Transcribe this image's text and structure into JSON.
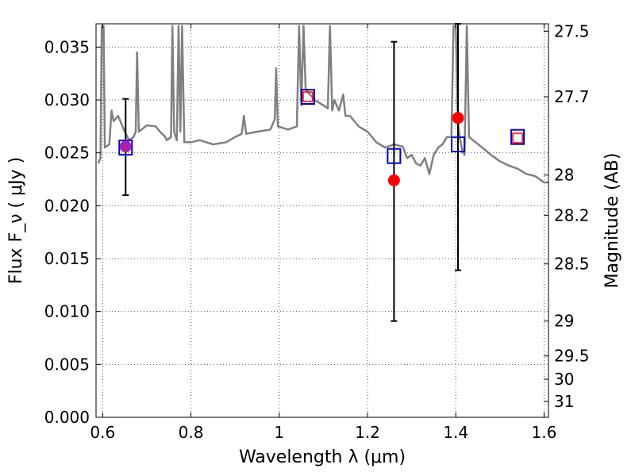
{
  "chart_data": {
    "type": "scatter",
    "xlabel": "Wavelength  λ (μm)",
    "ylabel": "Flux  F_ν  ( μJy )",
    "y2label": "Magnitude (AB)",
    "xlim": [
      0.585,
      1.61
    ],
    "ylim": [
      0.0,
      0.0372
    ],
    "grid": true,
    "x_ticks": [
      {
        "value": 0.6,
        "label": "0.6"
      },
      {
        "value": 0.8,
        "label": "0.8"
      },
      {
        "value": 1.0,
        "label": "1"
      },
      {
        "value": 1.2,
        "label": "1.2"
      },
      {
        "value": 1.4,
        "label": "1.4"
      },
      {
        "value": 1.6,
        "label": "1.6"
      }
    ],
    "y_ticks": [
      {
        "value": 0.0,
        "label": "0.000"
      },
      {
        "value": 0.005,
        "label": "0.005"
      },
      {
        "value": 0.01,
        "label": "0.010"
      },
      {
        "value": 0.015,
        "label": "0.015"
      },
      {
        "value": 0.02,
        "label": "0.020"
      },
      {
        "value": 0.025,
        "label": "0.025"
      },
      {
        "value": 0.03,
        "label": "0.030"
      },
      {
        "value": 0.035,
        "label": "0.035"
      }
    ],
    "y2_ticks": [
      {
        "flux": 0.0365,
        "label": "27.5"
      },
      {
        "flux": 0.0303,
        "label": "27.7"
      },
      {
        "flux": 0.0229,
        "label": "28"
      },
      {
        "flux": 0.0191,
        "label": "28.2"
      },
      {
        "flux": 0.0145,
        "label": "28.5"
      },
      {
        "flux": 0.0091,
        "label": "29"
      },
      {
        "flux": 0.0058,
        "label": "29.5"
      },
      {
        "flux": 0.0036,
        "label": "30"
      },
      {
        "flux": 0.0015,
        "label": "31"
      }
    ],
    "spectrum": {
      "color": "#808080",
      "points": [
        [
          0.59,
          0.024
        ],
        [
          0.595,
          0.0245
        ],
        [
          0.598,
          0.037
        ],
        [
          0.602,
          0.037
        ],
        [
          0.605,
          0.0255
        ],
        [
          0.615,
          0.0258
        ],
        [
          0.62,
          0.029
        ],
        [
          0.625,
          0.028
        ],
        [
          0.635,
          0.0285
        ],
        [
          0.64,
          0.028
        ],
        [
          0.65,
          0.027
        ],
        [
          0.66,
          0.0262
        ],
        [
          0.67,
          0.0265
        ],
        [
          0.675,
          0.027
        ],
        [
          0.678,
          0.0345
        ],
        [
          0.682,
          0.027
        ],
        [
          0.7,
          0.0276
        ],
        [
          0.72,
          0.0275
        ],
        [
          0.73,
          0.027
        ],
        [
          0.74,
          0.0266
        ],
        [
          0.745,
          0.0262
        ],
        [
          0.755,
          0.0265
        ],
        [
          0.758,
          0.037
        ],
        [
          0.762,
          0.027
        ],
        [
          0.768,
          0.0262
        ],
        [
          0.772,
          0.037
        ],
        [
          0.776,
          0.027
        ],
        [
          0.78,
          0.037
        ],
        [
          0.785,
          0.026
        ],
        [
          0.8,
          0.026
        ],
        [
          0.82,
          0.0262
        ],
        [
          0.85,
          0.0258
        ],
        [
          0.88,
          0.026
        ],
        [
          0.9,
          0.0265
        ],
        [
          0.915,
          0.0268
        ],
        [
          0.92,
          0.0285
        ],
        [
          0.925,
          0.0268
        ],
        [
          0.95,
          0.027
        ],
        [
          0.98,
          0.0272
        ],
        [
          0.99,
          0.0282
        ],
        [
          0.993,
          0.033
        ],
        [
          0.997,
          0.0275
        ],
        [
          1.02,
          0.0272
        ],
        [
          1.04,
          0.0275
        ],
        [
          1.045,
          0.037
        ],
        [
          1.05,
          0.0295
        ],
        [
          1.055,
          0.037
        ],
        [
          1.06,
          0.031
        ],
        [
          1.08,
          0.03
        ],
        [
          1.1,
          0.0295
        ],
        [
          1.11,
          0.0292
        ],
        [
          1.115,
          0.037
        ],
        [
          1.12,
          0.029
        ],
        [
          1.125,
          0.03
        ],
        [
          1.13,
          0.0295
        ],
        [
          1.135,
          0.029
        ],
        [
          1.145,
          0.0305
        ],
        [
          1.15,
          0.0285
        ],
        [
          1.16,
          0.0285
        ],
        [
          1.18,
          0.0275
        ],
        [
          1.2,
          0.027
        ],
        [
          1.22,
          0.026
        ],
        [
          1.24,
          0.0255
        ],
        [
          1.26,
          0.0258
        ],
        [
          1.28,
          0.0256
        ],
        [
          1.29,
          0.0245
        ],
        [
          1.3,
          0.0248
        ],
        [
          1.31,
          0.024
        ],
        [
          1.32,
          0.0238
        ],
        [
          1.33,
          0.0245
        ],
        [
          1.34,
          0.023
        ],
        [
          1.35,
          0.0248
        ],
        [
          1.36,
          0.0255
        ],
        [
          1.37,
          0.0258
        ],
        [
          1.38,
          0.0265
        ],
        [
          1.39,
          0.0265
        ],
        [
          1.395,
          0.037
        ],
        [
          1.4,
          0.037
        ],
        [
          1.405,
          0.0278
        ],
        [
          1.41,
          0.0262
        ],
        [
          1.415,
          0.0252
        ],
        [
          1.42,
          0.0248
        ],
        [
          1.425,
          0.037
        ],
        [
          1.43,
          0.0265
        ],
        [
          1.445,
          0.026
        ],
        [
          1.46,
          0.0255
        ],
        [
          1.48,
          0.0248
        ],
        [
          1.5,
          0.0242
        ],
        [
          1.52,
          0.0238
        ],
        [
          1.54,
          0.0235
        ],
        [
          1.56,
          0.023
        ],
        [
          1.58,
          0.0228
        ],
        [
          1.6,
          0.0222
        ],
        [
          1.61,
          0.0222
        ]
      ]
    },
    "errorbars": [
      {
        "x": 0.652,
        "low": 0.021,
        "high": 0.0301
      },
      {
        "x": 1.26,
        "low": 0.0091,
        "high": 0.0355
      },
      {
        "x": 1.405,
        "low": 0.0139,
        "high": 0.0372
      }
    ],
    "blue_squares": [
      {
        "x": 0.652,
        "y": 0.0255
      },
      {
        "x": 1.065,
        "y": 0.0303
      },
      {
        "x": 1.26,
        "y": 0.0247
      },
      {
        "x": 1.405,
        "y": 0.0258
      },
      {
        "x": 1.54,
        "y": 0.0265
      }
    ],
    "red_squares": [
      {
        "x": 1.065,
        "y": 0.0303
      },
      {
        "x": 1.54,
        "y": 0.0264
      }
    ],
    "circles": [
      {
        "x": 0.652,
        "y": 0.0256,
        "color": "#aa22aa"
      },
      {
        "x": 1.26,
        "y": 0.0224,
        "color": "#ff0000"
      },
      {
        "x": 1.405,
        "y": 0.0283,
        "color": "#ff0000"
      }
    ]
  }
}
